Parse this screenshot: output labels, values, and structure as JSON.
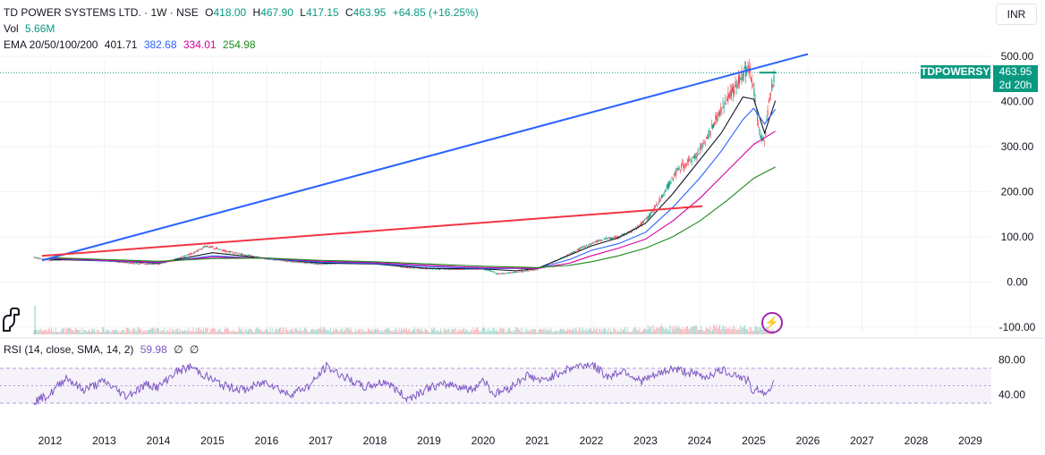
{
  "header": {
    "symbol": "TD POWER SYSTEMS LTD. · 1W · NSE",
    "o_label": "O",
    "o": "418.00",
    "h_label": "H",
    "h": "467.90",
    "l_label": "L",
    "l": "417.15",
    "c_label": "C",
    "c": "463.95",
    "change": "+64.85 (+16.25%)",
    "vol_label": "Vol",
    "vol": "5.66M",
    "ema_label": "EMA 20/50/100/200",
    "ema20": "401.71",
    "ema50": "382.68",
    "ema100": "334.01",
    "ema200": "254.98"
  },
  "currency_button": "INR",
  "price_tag": {
    "ticker": "TDPOWERSYS",
    "price": "463.95",
    "countdown": "2d 20h"
  },
  "rsi_legend": {
    "label": "RSI (14, close, SMA, 14, 2)",
    "value": "59.98",
    "extra1": "∅",
    "extra2": "∅"
  },
  "icons": {
    "alert": "lightning-icon",
    "logo": "dino-icon"
  },
  "colors": {
    "up": "#089981",
    "down": "#f23645",
    "ema20": "#131722",
    "ema50": "#2962ff",
    "ema100": "#d500a0",
    "ema200": "#1b8a1b",
    "rsi": "#7e57c2",
    "trend_blue": "#2962ff",
    "trend_red": "#f23645"
  },
  "chart_data": [
    {
      "type": "line",
      "title": "TD POWER SYSTEMS LTD. · 1W · NSE",
      "x_ticks": [
        "2012",
        "2013",
        "2014",
        "2015",
        "2016",
        "2017",
        "2018",
        "2019",
        "2020",
        "2021",
        "2022",
        "2023",
        "2024",
        "2025",
        "2026",
        "2027",
        "2028",
        "2029"
      ],
      "y_ticks": [
        "500.00",
        "400.00",
        "300.00",
        "200.00",
        "100.00",
        "0.00",
        "-100.00"
      ],
      "ylim": [
        -100,
        510
      ],
      "series": [
        {
          "name": "TD POWER SYSTEMS LTD.",
          "x": [
            2011.7,
            2012.0,
            2012.5,
            2013.0,
            2013.5,
            2014.0,
            2014.3,
            2014.6,
            2014.9,
            2015.2,
            2015.6,
            2016.0,
            2016.5,
            2017.0,
            2017.4,
            2017.8,
            2018.2,
            2018.6,
            2019.0,
            2019.5,
            2020.0,
            2020.3,
            2020.6,
            2021.0,
            2021.3,
            2021.6,
            2021.9,
            2022.2,
            2022.5,
            2022.8,
            2023.1,
            2023.4,
            2023.6,
            2023.9,
            2024.1,
            2024.3,
            2024.5,
            2024.7,
            2024.9,
            2025.0,
            2025.1,
            2025.2,
            2025.3,
            2025.4
          ],
          "values": [
            55,
            48,
            52,
            48,
            42,
            40,
            50,
            62,
            80,
            70,
            60,
            52,
            45,
            40,
            42,
            44,
            40,
            32,
            30,
            28,
            30,
            18,
            22,
            28,
            45,
            62,
            80,
            95,
            100,
            115,
            150,
            210,
            250,
            275,
            310,
            360,
            405,
            440,
            475,
            430,
            330,
            310,
            420,
            463.95
          ]
        },
        {
          "name": "EMA 20",
          "x": [
            2012.0,
            2013.0,
            2014.0,
            2015.0,
            2016.0,
            2017.0,
            2018.0,
            2019.0,
            2020.0,
            2020.6,
            2021.0,
            2021.6,
            2022.0,
            2022.5,
            2023.0,
            2023.5,
            2024.0,
            2024.4,
            2024.8,
            2025.0,
            2025.2,
            2025.4
          ],
          "values": [
            50,
            47,
            42,
            65,
            52,
            42,
            40,
            30,
            29,
            25,
            30,
            60,
            80,
            98,
            130,
            195,
            270,
            330,
            410,
            405,
            330,
            401.71
          ]
        },
        {
          "name": "EMA 50",
          "x": [
            2012.0,
            2013.0,
            2014.0,
            2015.0,
            2016.0,
            2017.0,
            2018.0,
            2019.0,
            2020.0,
            2021.0,
            2021.6,
            2022.0,
            2022.5,
            2023.0,
            2023.5,
            2024.0,
            2024.4,
            2024.8,
            2025.0,
            2025.2,
            2025.4
          ],
          "values": [
            52,
            47,
            43,
            58,
            52,
            44,
            41,
            34,
            30,
            30,
            50,
            70,
            85,
            110,
            165,
            230,
            290,
            360,
            385,
            350,
            382.68
          ]
        },
        {
          "name": "EMA 100",
          "x": [
            2012.0,
            2013.0,
            2014.0,
            2015.0,
            2016.0,
            2017.0,
            2018.0,
            2019.0,
            2020.0,
            2021.0,
            2021.6,
            2022.0,
            2022.5,
            2023.0,
            2023.5,
            2024.0,
            2024.5,
            2025.0,
            2025.4
          ],
          "values": [
            53,
            48,
            44,
            55,
            53,
            46,
            43,
            37,
            32,
            30,
            42,
            58,
            75,
            95,
            135,
            185,
            245,
            305,
            334.01
          ]
        },
        {
          "name": "EMA 200",
          "x": [
            2012.0,
            2013.0,
            2014.0,
            2015.0,
            2016.0,
            2017.0,
            2018.0,
            2019.0,
            2020.0,
            2021.0,
            2021.6,
            2022.0,
            2022.5,
            2023.0,
            2023.5,
            2024.0,
            2024.5,
            2025.0,
            2025.4
          ],
          "values": [
            54,
            50,
            46,
            52,
            53,
            48,
            45,
            40,
            35,
            32,
            37,
            45,
            58,
            75,
            100,
            135,
            180,
            230,
            254.98
          ]
        }
      ],
      "trendlines": [
        {
          "x": [
            2011.85,
            2026.0
          ],
          "values": [
            48,
            505
          ]
        },
        {
          "x": [
            2011.85,
            2024.05
          ],
          "values": [
            58,
            168
          ]
        }
      ]
    },
    {
      "type": "line",
      "title": "RSI (14, close, SMA, 14, 2)",
      "y_ticks": [
        "80.00",
        "40.00"
      ],
      "band": [
        30,
        70
      ],
      "series": [
        {
          "name": "RSI",
          "x": [
            2011.7,
            2012.0,
            2012.3,
            2012.6,
            2013.0,
            2013.4,
            2013.8,
            2014.0,
            2014.3,
            2014.6,
            2014.9,
            2015.2,
            2015.6,
            2016.0,
            2016.4,
            2016.8,
            2017.1,
            2017.5,
            2017.8,
            2018.2,
            2018.6,
            2019.0,
            2019.4,
            2019.8,
            2020.0,
            2020.2,
            2020.5,
            2020.8,
            2021.1,
            2021.4,
            2021.7,
            2022.0,
            2022.3,
            2022.6,
            2022.9,
            2023.2,
            2023.5,
            2023.8,
            2024.1,
            2024.4,
            2024.7,
            2024.9,
            2025.0,
            2025.1,
            2025.2,
            2025.4
          ],
          "values": [
            32,
            40,
            60,
            45,
            55,
            38,
            52,
            48,
            65,
            72,
            60,
            50,
            45,
            55,
            40,
            50,
            72,
            58,
            48,
            55,
            35,
            48,
            52,
            45,
            58,
            40,
            48,
            62,
            55,
            65,
            72,
            75,
            60,
            68,
            55,
            62,
            70,
            65,
            60,
            68,
            62,
            55,
            40,
            48,
            38,
            59.98
          ]
        }
      ]
    }
  ]
}
